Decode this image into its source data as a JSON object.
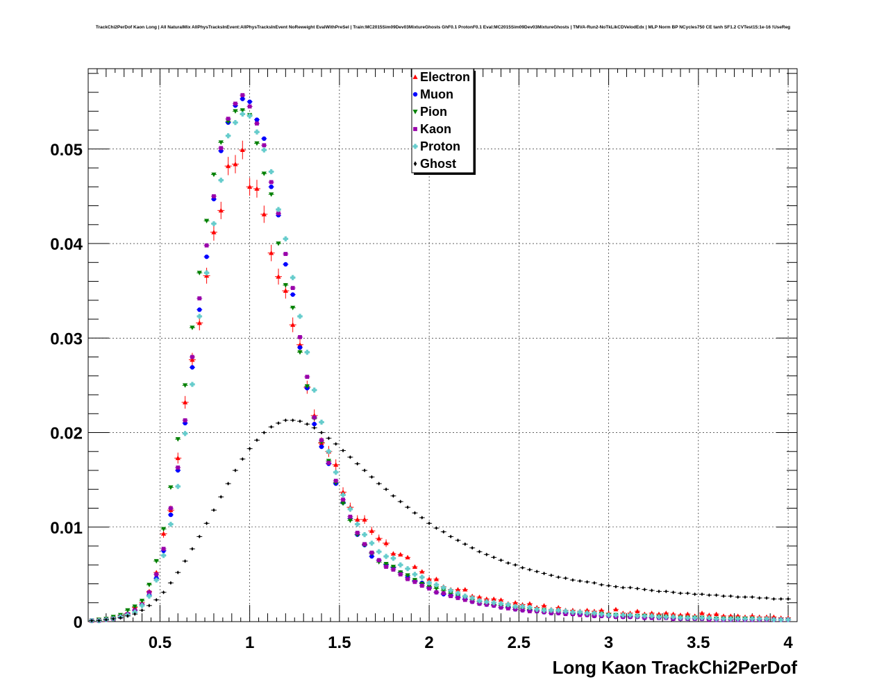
{
  "chart_data": {
    "type": "scatter",
    "title": "TrackChi2PerDof Kaon Long | All NaturalMix AllPhysTracksInEvent:AllPhysTracksInEvent NoReweight EvalWithPreSel | Train:MC2015Sim09Dev03MixtureGhosts GhF0.1 ProtonF0.1 Eval:MC2015Sim09Dev03MixtureGhosts | TMVA-Run2-NoTkLikCDVelodEdx | MLP Norm BP NCycles750 CE tanh SF1.2 CVTest15:1e-16 !UseReg",
    "xlabel": "Long Kaon TrackChi2PerDof",
    "ylabel": "",
    "xlim": [
      0.1,
      4.05
    ],
    "ylim": [
      0,
      0.0585
    ],
    "grid": true,
    "legend_position": "top-center",
    "x_ticks": [
      "0.5",
      "1",
      "1.5",
      "2",
      "2.5",
      "3",
      "3.5",
      "4"
    ],
    "y_ticks": [
      "0",
      "0.01",
      "0.02",
      "0.03",
      "0.04",
      "0.05"
    ],
    "x": [
      0.12,
      0.16,
      0.2,
      0.24,
      0.28,
      0.32,
      0.36,
      0.4,
      0.44,
      0.48,
      0.52,
      0.56,
      0.6,
      0.64,
      0.68,
      0.72,
      0.76,
      0.8,
      0.84,
      0.88,
      0.92,
      0.96,
      1.0,
      1.04,
      1.08,
      1.12,
      1.16,
      1.2,
      1.24,
      1.28,
      1.32,
      1.36,
      1.4,
      1.44,
      1.48,
      1.52,
      1.56,
      1.6,
      1.64,
      1.68,
      1.72,
      1.76,
      1.8,
      1.84,
      1.88,
      1.92,
      1.96,
      2.0,
      2.04,
      2.08,
      2.12,
      2.16,
      2.2,
      2.24,
      2.28,
      2.32,
      2.36,
      2.4,
      2.44,
      2.48,
      2.52,
      2.56,
      2.6,
      2.64,
      2.68,
      2.72,
      2.76,
      2.8,
      2.84,
      2.88,
      2.92,
      2.96,
      3.0,
      3.04,
      3.08,
      3.12,
      3.16,
      3.2,
      3.24,
      3.28,
      3.32,
      3.36,
      3.4,
      3.44,
      3.48,
      3.52,
      3.56,
      3.6,
      3.64,
      3.68,
      3.72,
      3.76,
      3.8,
      3.84,
      3.88,
      3.92,
      3.96,
      4.0
    ],
    "series": [
      {
        "name": "Electron",
        "marker": "triangle-up",
        "color": "#ff0000",
        "values": [
          0.0001,
          0.0002,
          0.0002,
          0.0004,
          0.0006,
          0.0009,
          0.0015,
          0.002,
          0.0032,
          0.0052,
          0.0093,
          0.0118,
          0.0173,
          0.0232,
          0.0277,
          0.0316,
          0.0366,
          0.0412,
          0.0435,
          0.0482,
          0.0484,
          0.0499,
          0.046,
          0.0458,
          0.0431,
          0.039,
          0.0365,
          0.035,
          0.0314,
          0.0293,
          0.0248,
          0.0218,
          0.0189,
          0.018,
          0.0166,
          0.0137,
          0.0121,
          0.0108,
          0.0108,
          0.0096,
          0.0088,
          0.0083,
          0.0072,
          0.0071,
          0.0068,
          0.0058,
          0.0053,
          0.0045,
          0.0045,
          0.0037,
          0.0034,
          0.0034,
          0.0034,
          0.0027,
          0.0026,
          0.0024,
          0.0024,
          0.0023,
          0.0019,
          0.002,
          0.0018,
          0.0019,
          0.0015,
          0.0017,
          0.0013,
          0.0015,
          0.0012,
          0.0012,
          0.0011,
          0.0012,
          0.0011,
          0.0012,
          0.0009,
          0.0013,
          0.0009,
          0.0009,
          0.0011,
          0.0008,
          0.0009,
          0.0008,
          0.0009,
          0.0008,
          0.0007,
          0.0008,
          0.0006,
          0.0009,
          0.0007,
          0.0008,
          0.0006,
          0.0006,
          0.0006,
          0.0005,
          0.0006,
          0.0005,
          0.0005,
          0.0005,
          0.0004,
          0.0004
        ]
      },
      {
        "name": "Muon",
        "marker": "circle",
        "color": "#0000ff",
        "values": [
          0.0001,
          0.0001,
          0.0002,
          0.0003,
          0.0005,
          0.0008,
          0.0012,
          0.0018,
          0.0028,
          0.0046,
          0.0075,
          0.0113,
          0.016,
          0.021,
          0.0269,
          0.033,
          0.0386,
          0.0447,
          0.0498,
          0.0528,
          0.0546,
          0.0553,
          0.055,
          0.0531,
          0.0511,
          0.046,
          0.043,
          0.0378,
          0.0346,
          0.029,
          0.0247,
          0.0209,
          0.0185,
          0.0167,
          0.0146,
          0.0126,
          0.0109,
          0.0092,
          0.0081,
          0.0069,
          0.0065,
          0.006,
          0.0057,
          0.0052,
          0.0047,
          0.0043,
          0.0041,
          0.0036,
          0.0031,
          0.0029,
          0.0028,
          0.0026,
          0.0024,
          0.0021,
          0.0019,
          0.0018,
          0.0017,
          0.0015,
          0.0015,
          0.0013,
          0.0012,
          0.0012,
          0.0011,
          0.001,
          0.0009,
          0.0009,
          0.0009,
          0.0008,
          0.0008,
          0.0007,
          0.0006,
          0.0006,
          0.0006,
          0.0005,
          0.0005,
          0.0005,
          0.0005,
          0.0004,
          0.0004,
          0.0004,
          0.0004,
          0.0003,
          0.0003,
          0.0003,
          0.0003,
          0.0003,
          0.0003,
          0.0002,
          0.0002,
          0.0002,
          0.0002,
          0.0002,
          0.0002,
          0.0002,
          0.0002,
          0.0002,
          0.0002,
          0.0002
        ]
      },
      {
        "name": "Pion",
        "marker": "triangle-down",
        "color": "#008000",
        "values": [
          0.0001,
          0.0002,
          0.0003,
          0.0005,
          0.0007,
          0.0012,
          0.0016,
          0.0022,
          0.0039,
          0.0064,
          0.0098,
          0.0142,
          0.0193,
          0.025,
          0.0311,
          0.0369,
          0.0424,
          0.0473,
          0.0507,
          0.0529,
          0.054,
          0.0541,
          0.0536,
          0.0506,
          0.0474,
          0.0452,
          0.04,
          0.0356,
          0.0332,
          0.0285,
          0.0249,
          0.0215,
          0.019,
          0.017,
          0.0147,
          0.0125,
          0.0107,
          0.0092,
          0.0081,
          0.0072,
          0.0063,
          0.0061,
          0.0058,
          0.0052,
          0.0049,
          0.0044,
          0.004,
          0.0037,
          0.0035,
          0.0033,
          0.003,
          0.0028,
          0.0026,
          0.0023,
          0.0021,
          0.0019,
          0.0018,
          0.0017,
          0.0016,
          0.0015,
          0.0014,
          0.0013,
          0.0012,
          0.0012,
          0.0011,
          0.0011,
          0.001,
          0.0009,
          0.0009,
          0.0008,
          0.0008,
          0.0008,
          0.0007,
          0.0007,
          0.0006,
          0.0006,
          0.0006,
          0.0006,
          0.0005,
          0.0005,
          0.0005,
          0.0004,
          0.0004,
          0.0004,
          0.0004,
          0.0004,
          0.0003,
          0.0003,
          0.0003,
          0.0003,
          0.0003,
          0.0003,
          0.0003,
          0.0002,
          0.0002,
          0.0002,
          0.0002,
          0.0002
        ]
      },
      {
        "name": "Kaon",
        "marker": "square",
        "color": "#9900aa",
        "values": [
          0.0001,
          0.0001,
          0.0002,
          0.0003,
          0.0005,
          0.0008,
          0.0012,
          0.0018,
          0.0031,
          0.005,
          0.0077,
          0.012,
          0.0163,
          0.0213,
          0.028,
          0.0342,
          0.0398,
          0.045,
          0.0501,
          0.0532,
          0.0548,
          0.0557,
          0.0545,
          0.0527,
          0.0504,
          0.0465,
          0.0432,
          0.0389,
          0.0353,
          0.0301,
          0.0259,
          0.0216,
          0.0192,
          0.0168,
          0.0149,
          0.0129,
          0.0111,
          0.0094,
          0.0082,
          0.0073,
          0.0065,
          0.0058,
          0.0055,
          0.005,
          0.0045,
          0.0042,
          0.0038,
          0.0035,
          0.0031,
          0.003,
          0.0027,
          0.0025,
          0.0023,
          0.0021,
          0.0019,
          0.0018,
          0.0017,
          0.0015,
          0.0014,
          0.0013,
          0.0012,
          0.0011,
          0.0011,
          0.001,
          0.0009,
          0.0009,
          0.0008,
          0.0008,
          0.0007,
          0.0007,
          0.0006,
          0.0006,
          0.0006,
          0.0005,
          0.0005,
          0.0005,
          0.0005,
          0.0004,
          0.0004,
          0.0004,
          0.0004,
          0.0003,
          0.0003,
          0.0003,
          0.0003,
          0.0003,
          0.0002,
          0.0002,
          0.0002,
          0.0002,
          0.0002,
          0.0002,
          0.0002,
          0.0002,
          0.0002,
          0.0002,
          0.0002,
          0.0002
        ]
      },
      {
        "name": "Proton",
        "marker": "cross",
        "color": "#66cccc",
        "values": [
          0.0001,
          0.0001,
          0.0002,
          0.0003,
          0.0005,
          0.0007,
          0.001,
          0.0017,
          0.0027,
          0.0044,
          0.007,
          0.0103,
          0.0143,
          0.0199,
          0.0251,
          0.0323,
          0.0369,
          0.0421,
          0.0467,
          0.0514,
          0.0528,
          0.0537,
          0.0535,
          0.0518,
          0.0499,
          0.0476,
          0.0436,
          0.0405,
          0.0364,
          0.0323,
          0.0285,
          0.0245,
          0.0211,
          0.018,
          0.0158,
          0.0134,
          0.0119,
          0.0103,
          0.0092,
          0.0083,
          0.0074,
          0.0069,
          0.0067,
          0.006,
          0.0056,
          0.005,
          0.0047,
          0.0041,
          0.0039,
          0.0036,
          0.0033,
          0.003,
          0.0027,
          0.0025,
          0.0022,
          0.0021,
          0.002,
          0.0019,
          0.0018,
          0.0016,
          0.0016,
          0.0015,
          0.0013,
          0.0012,
          0.0012,
          0.0012,
          0.0011,
          0.001,
          0.001,
          0.0009,
          0.0009,
          0.0008,
          0.0007,
          0.0007,
          0.0007,
          0.0007,
          0.0006,
          0.0006,
          0.0006,
          0.0005,
          0.0005,
          0.0005,
          0.0004,
          0.0004,
          0.0004,
          0.0004,
          0.0004,
          0.0003,
          0.0003,
          0.0003,
          0.0003,
          0.0003,
          0.0003,
          0.0003,
          0.0003,
          0.0002,
          0.0002,
          0.0002
        ]
      },
      {
        "name": "Ghost",
        "marker": "diamond",
        "color": "#000000",
        "values": [
          0.0001,
          0.0001,
          0.0002,
          0.0003,
          0.0004,
          0.0006,
          0.0008,
          0.0012,
          0.0017,
          0.0023,
          0.0031,
          0.0041,
          0.0052,
          0.0064,
          0.0077,
          0.009,
          0.0104,
          0.0118,
          0.0132,
          0.0146,
          0.016,
          0.0172,
          0.0183,
          0.0192,
          0.02,
          0.0206,
          0.021,
          0.0213,
          0.0213,
          0.0212,
          0.0209,
          0.0205,
          0.02,
          0.0194,
          0.0188,
          0.0181,
          0.0174,
          0.0167,
          0.016,
          0.0153,
          0.0146,
          0.014,
          0.0133,
          0.0127,
          0.0121,
          0.0115,
          0.011,
          0.0104,
          0.0099,
          0.0095,
          0.009,
          0.0086,
          0.0082,
          0.0078,
          0.0074,
          0.0071,
          0.0068,
          0.0065,
          0.0062,
          0.006,
          0.0057,
          0.0055,
          0.0053,
          0.0051,
          0.0049,
          0.0047,
          0.0046,
          0.0044,
          0.0043,
          0.0042,
          0.0041,
          0.0039,
          0.0038,
          0.0037,
          0.0036,
          0.0036,
          0.0035,
          0.0034,
          0.0033,
          0.0032,
          0.0032,
          0.0031,
          0.003,
          0.003,
          0.0029,
          0.0029,
          0.0028,
          0.0028,
          0.0027,
          0.0027,
          0.0026,
          0.0026,
          0.0026,
          0.0025,
          0.0025,
          0.0024,
          0.0024,
          0.0024
        ]
      }
    ]
  }
}
